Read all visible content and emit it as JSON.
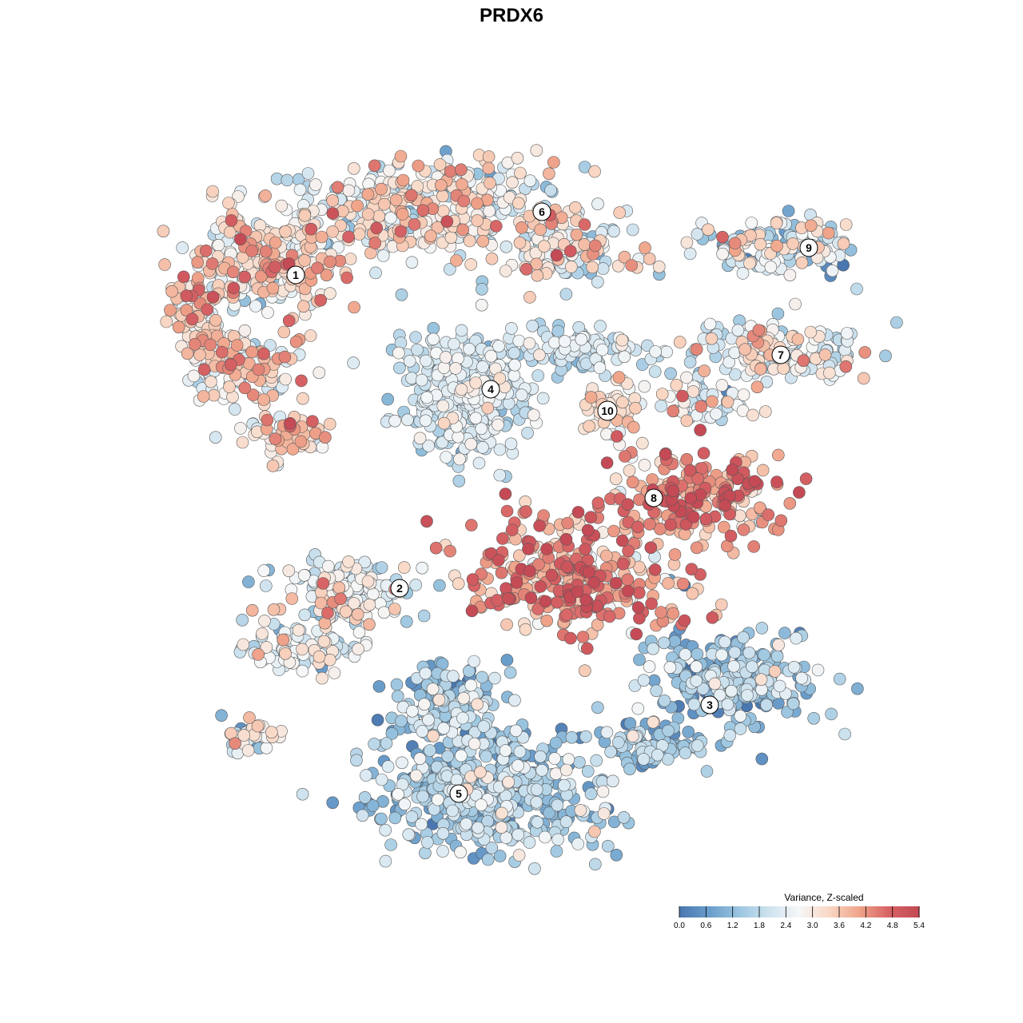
{
  "chart_data": {
    "type": "scatter",
    "title": "PRDX6",
    "xlabel": "",
    "ylabel": "",
    "grid": false,
    "legend_placement": "bottom-right",
    "color_scale": {
      "title": "Variance, Z-scaled",
      "min": 0.0,
      "max": 5.4,
      "ticks": [
        "0.0",
        "0.6",
        "1.2",
        "1.8",
        "2.4",
        "3.0",
        "3.6",
        "4.2",
        "4.8",
        "5.4"
      ],
      "colors": [
        "#4a77b0",
        "#6a9ecb",
        "#9cc6e0",
        "#cfe3ef",
        "#f5f7f8",
        "#f9d7c4",
        "#f0a58b",
        "#d76365",
        "#c44a55"
      ]
    },
    "clusters": [
      {
        "label": "1",
        "mean_value": 3.2,
        "spread": 0.9
      },
      {
        "label": "2",
        "mean_value": 2.4,
        "spread": 0.8
      },
      {
        "label": "3",
        "mean_value": 1.3,
        "spread": 0.7
      },
      {
        "label": "4",
        "mean_value": 2.1,
        "spread": 0.5
      },
      {
        "label": "5",
        "mean_value": 1.5,
        "spread": 0.7
      },
      {
        "label": "6",
        "mean_value": 2.8,
        "spread": 0.9
      },
      {
        "label": "7",
        "mean_value": 2.5,
        "spread": 0.8
      },
      {
        "label": "8",
        "mean_value": 4.2,
        "spread": 0.8
      },
      {
        "label": "9",
        "mean_value": 2.2,
        "spread": 0.9
      },
      {
        "label": "10",
        "mean_value": 3.0,
        "spread": 0.6
      }
    ]
  }
}
